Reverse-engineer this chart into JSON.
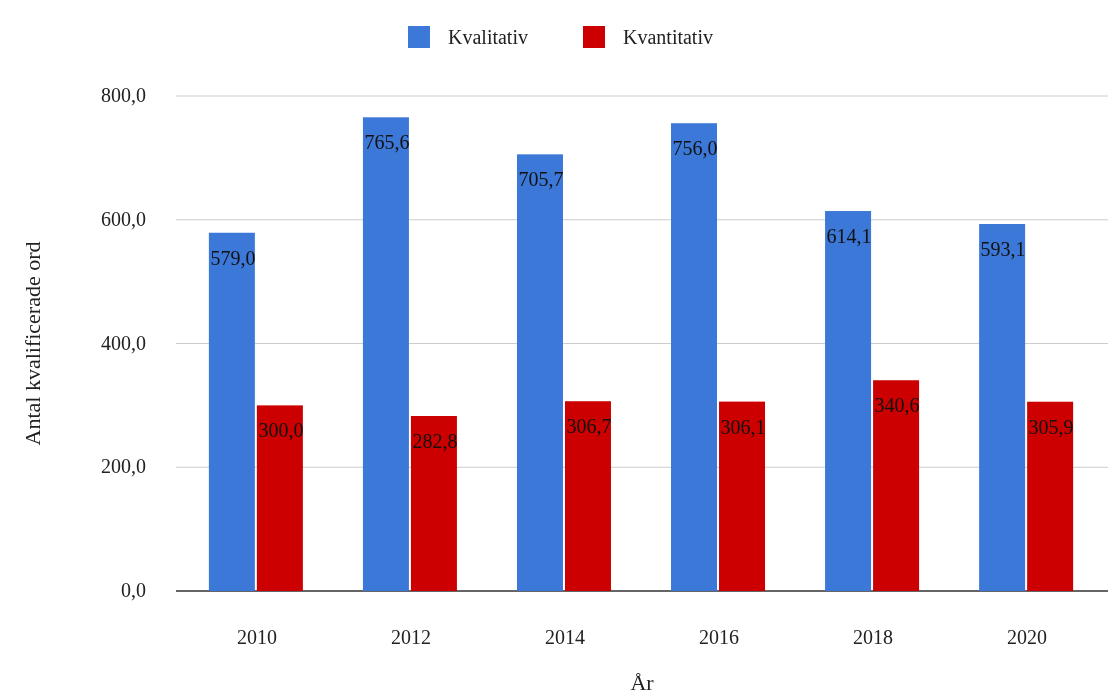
{
  "chart_data": {
    "type": "bar",
    "xlabel": "År",
    "ylabel": "Antal kvalificerade ord",
    "categories": [
      "2010",
      "2012",
      "2014",
      "2016",
      "2018",
      "2020"
    ],
    "series": [
      {
        "name": "Kvalitativ",
        "color": "#3c78d8",
        "values": [
          579.0,
          765.6,
          705.7,
          756.0,
          614.1,
          593.1
        ],
        "value_labels": [
          "579,0",
          "765,6",
          "705,7",
          "756,0",
          "614,1",
          "593,1"
        ]
      },
      {
        "name": "Kvantitativ",
        "color": "#cc0000",
        "values": [
          300.0,
          282.8,
          306.7,
          306.1,
          340.6,
          305.9
        ],
        "value_labels": [
          "300,0",
          "282,8",
          "306,7",
          "306,1",
          "340,6",
          "305,9"
        ]
      }
    ],
    "ylim": [
      0,
      800
    ],
    "yticks": [
      {
        "value": 0,
        "label": "0,0"
      },
      {
        "value": 200,
        "label": "200,0"
      },
      {
        "value": 400,
        "label": "400,0"
      },
      {
        "value": 600,
        "label": "600,0"
      },
      {
        "value": 800,
        "label": "800,0"
      }
    ],
    "grid": "y",
    "legend": "top"
  }
}
